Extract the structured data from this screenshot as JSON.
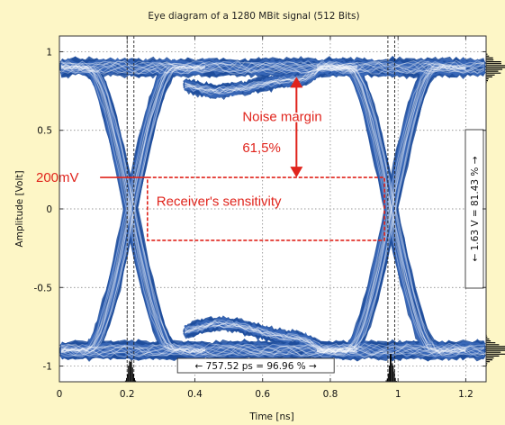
{
  "chart_data": {
    "type": "line",
    "title": "Eye diagram of a 1280 MBit signal (512 Bits)",
    "xlabel": "Time [ns]",
    "ylabel": "Amplitude [Volt]",
    "xlim": [
      0,
      1.26
    ],
    "ylim": [
      -1.1,
      1.1
    ],
    "x_ticks": [
      0,
      0.2,
      0.4,
      0.6,
      0.8,
      1,
      1.2
    ],
    "x_tick_labels": [
      "0",
      "0.2",
      "0.4",
      "0.6",
      "0.8",
      "1",
      "1.2"
    ],
    "y_ticks": [
      1,
      0.5,
      0,
      -0.5,
      -1
    ],
    "y_tick_labels": [
      "1",
      "0.5",
      "0",
      "-0.5",
      "-1"
    ],
    "grid": "dotted",
    "trace_color": "#1f4e9c",
    "annotation_color": "#e0241c",
    "eye": {
      "high_level": 0.9,
      "low_level": -0.9,
      "crossing_1_ns": 0.21,
      "crossing_2_ns": 0.98,
      "period_ns": 0.781,
      "upper_bump": {
        "x": [
          0.46,
          0.7
        ],
        "y": [
          0.75,
          0.82
        ]
      },
      "lower_bump": {
        "x": [
          0.47,
          0.7
        ],
        "y": [
          -0.73,
          -0.82
        ]
      }
    },
    "cursors_ns": [
      0.2,
      0.22,
      0.97,
      0.99
    ],
    "annotations": {
      "noise_margin_label": "Noise margin",
      "noise_margin_value": "61,5%",
      "sensitivity_level_label": "200mV",
      "sensitivity_level_v": 0.2,
      "receiver_sensitivity_label": "Receiver's sensitivity",
      "receiver_box": {
        "x": [
          0.26,
          0.96
        ],
        "y": [
          -0.2,
          0.2
        ]
      },
      "noise_arrow": {
        "x": 0.7,
        "y_top": 0.84,
        "y_bottom": 0.2
      },
      "time_measure_label": "757.52 ps = 96.96 %",
      "voltage_measure_label": "1.63 V = 81.43 %"
    }
  }
}
